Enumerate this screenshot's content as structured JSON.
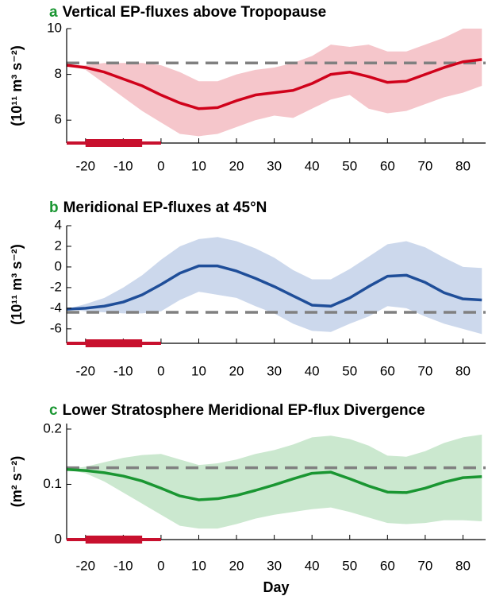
{
  "chart_data": [
    {
      "type": "line",
      "panel": "a",
      "title": "Vertical EP-fluxes above Tropopause",
      "ylabel": "(10¹¹ m³ s⁻²)",
      "x": [
        -25,
        -20,
        -15,
        -10,
        -5,
        0,
        5,
        10,
        15,
        20,
        25,
        30,
        35,
        40,
        45,
        50,
        55,
        60,
        65,
        70,
        75,
        80,
        85
      ],
      "values": [
        8.4,
        8.3,
        8.1,
        7.8,
        7.5,
        7.1,
        6.75,
        6.5,
        6.55,
        6.85,
        7.1,
        7.2,
        7.3,
        7.6,
        8.0,
        8.1,
        7.9,
        7.65,
        7.7,
        8.0,
        8.3,
        8.55,
        8.65
      ],
      "lower": [
        8.4,
        8.2,
        7.6,
        7.0,
        6.4,
        5.9,
        5.4,
        5.3,
        5.4,
        5.7,
        6.0,
        6.2,
        6.1,
        6.5,
        6.9,
        7.1,
        6.5,
        6.3,
        6.4,
        6.7,
        7.0,
        7.2,
        7.5
      ],
      "upper": [
        8.4,
        8.4,
        8.5,
        8.5,
        8.5,
        8.4,
        8.1,
        7.7,
        7.7,
        8.0,
        8.2,
        8.3,
        8.5,
        8.8,
        9.3,
        9.2,
        9.3,
        9.0,
        9.0,
        9.3,
        9.6,
        10.0,
        10.0
      ],
      "color": "#d0021b",
      "band_color": "#f5c6cb",
      "reference": 8.5,
      "xlim": [
        -25,
        86
      ],
      "xticks": [
        -20,
        -10,
        0,
        10,
        20,
        30,
        40,
        50,
        60,
        70,
        80
      ],
      "ylim": [
        5,
        10
      ],
      "yticks": [
        6,
        8,
        10
      ],
      "window": {
        "full": [
          -25,
          0
        ],
        "core": [
          -20,
          -5
        ]
      },
      "window_color": "#c8102e"
    },
    {
      "type": "line",
      "panel": "b",
      "title": "Meridional EP-fluxes at 45°N",
      "ylabel": "(10¹¹ m³ s⁻²)",
      "x": [
        -25,
        -20,
        -15,
        -10,
        -5,
        0,
        5,
        10,
        15,
        20,
        25,
        30,
        35,
        40,
        45,
        50,
        55,
        60,
        65,
        70,
        75,
        80,
        85
      ],
      "values": [
        -4.1,
        -4.0,
        -3.8,
        -3.4,
        -2.7,
        -1.7,
        -0.6,
        0.1,
        0.1,
        -0.4,
        -1.1,
        -1.9,
        -2.8,
        -3.7,
        -3.8,
        -3.0,
        -1.9,
        -0.9,
        -0.8,
        -1.5,
        -2.5,
        -3.1,
        -3.2
      ],
      "lower": [
        -4.1,
        -4.3,
        -4.4,
        -4.5,
        -4.5,
        -4.3,
        -3.2,
        -2.4,
        -2.7,
        -3.0,
        -3.8,
        -4.5,
        -5.5,
        -6.2,
        -6.3,
        -5.5,
        -4.8,
        -3.8,
        -4.0,
        -4.8,
        -5.5,
        -6.0,
        -6.5
      ],
      "upper": [
        -4.1,
        -3.6,
        -3.0,
        -2.0,
        -0.8,
        0.7,
        2.0,
        2.7,
        2.9,
        2.5,
        1.8,
        0.9,
        -0.3,
        -1.2,
        -1.2,
        -0.2,
        1.0,
        2.2,
        2.5,
        1.9,
        0.9,
        0.0,
        -0.1
      ],
      "color": "#1f4e99",
      "band_color": "#ccd8ec",
      "reference": -4.4,
      "xlim": [
        -25,
        86
      ],
      "xticks": [
        -20,
        -10,
        0,
        10,
        20,
        30,
        40,
        50,
        60,
        70,
        80
      ],
      "ylim": [
        -7.4,
        4
      ],
      "yticks": [
        -6,
        -4,
        -2,
        0,
        2,
        4
      ],
      "window": {
        "full": [
          -25,
          0
        ],
        "core": [
          -20,
          -5
        ]
      },
      "window_color": "#c8102e"
    },
    {
      "type": "line",
      "panel": "c",
      "title": "Lower Stratosphere Meridional EP-flux Divergence",
      "ylabel": "(m² s⁻²)",
      "xlabel": "Day",
      "x": [
        -25,
        -20,
        -15,
        -10,
        -5,
        0,
        5,
        10,
        15,
        20,
        25,
        30,
        35,
        40,
        45,
        50,
        55,
        60,
        65,
        70,
        75,
        80,
        85
      ],
      "values": [
        0.127,
        0.125,
        0.121,
        0.115,
        0.106,
        0.093,
        0.079,
        0.072,
        0.074,
        0.08,
        0.089,
        0.099,
        0.11,
        0.12,
        0.122,
        0.11,
        0.097,
        0.086,
        0.085,
        0.093,
        0.104,
        0.112,
        0.114
      ],
      "lower": [
        0.127,
        0.12,
        0.105,
        0.085,
        0.065,
        0.045,
        0.025,
        0.02,
        0.02,
        0.028,
        0.038,
        0.045,
        0.05,
        0.055,
        0.058,
        0.05,
        0.04,
        0.03,
        0.028,
        0.03,
        0.035,
        0.035,
        0.033
      ],
      "upper": [
        0.127,
        0.132,
        0.14,
        0.148,
        0.153,
        0.155,
        0.145,
        0.135,
        0.138,
        0.145,
        0.155,
        0.162,
        0.172,
        0.185,
        0.188,
        0.182,
        0.17,
        0.152,
        0.15,
        0.16,
        0.175,
        0.185,
        0.19
      ],
      "color": "#1a9632",
      "band_color": "#cbe8cf",
      "reference": 0.13,
      "xlim": [
        -25,
        86
      ],
      "xticks": [
        -20,
        -10,
        0,
        10,
        20,
        30,
        40,
        50,
        60,
        70,
        80
      ],
      "ylim": [
        0,
        0.21
      ],
      "yticks": [
        0,
        0.1,
        0.2
      ],
      "window": {
        "full": [
          -25,
          0
        ],
        "core": [
          -20,
          -5
        ]
      },
      "window_color": "#c8102e"
    }
  ]
}
